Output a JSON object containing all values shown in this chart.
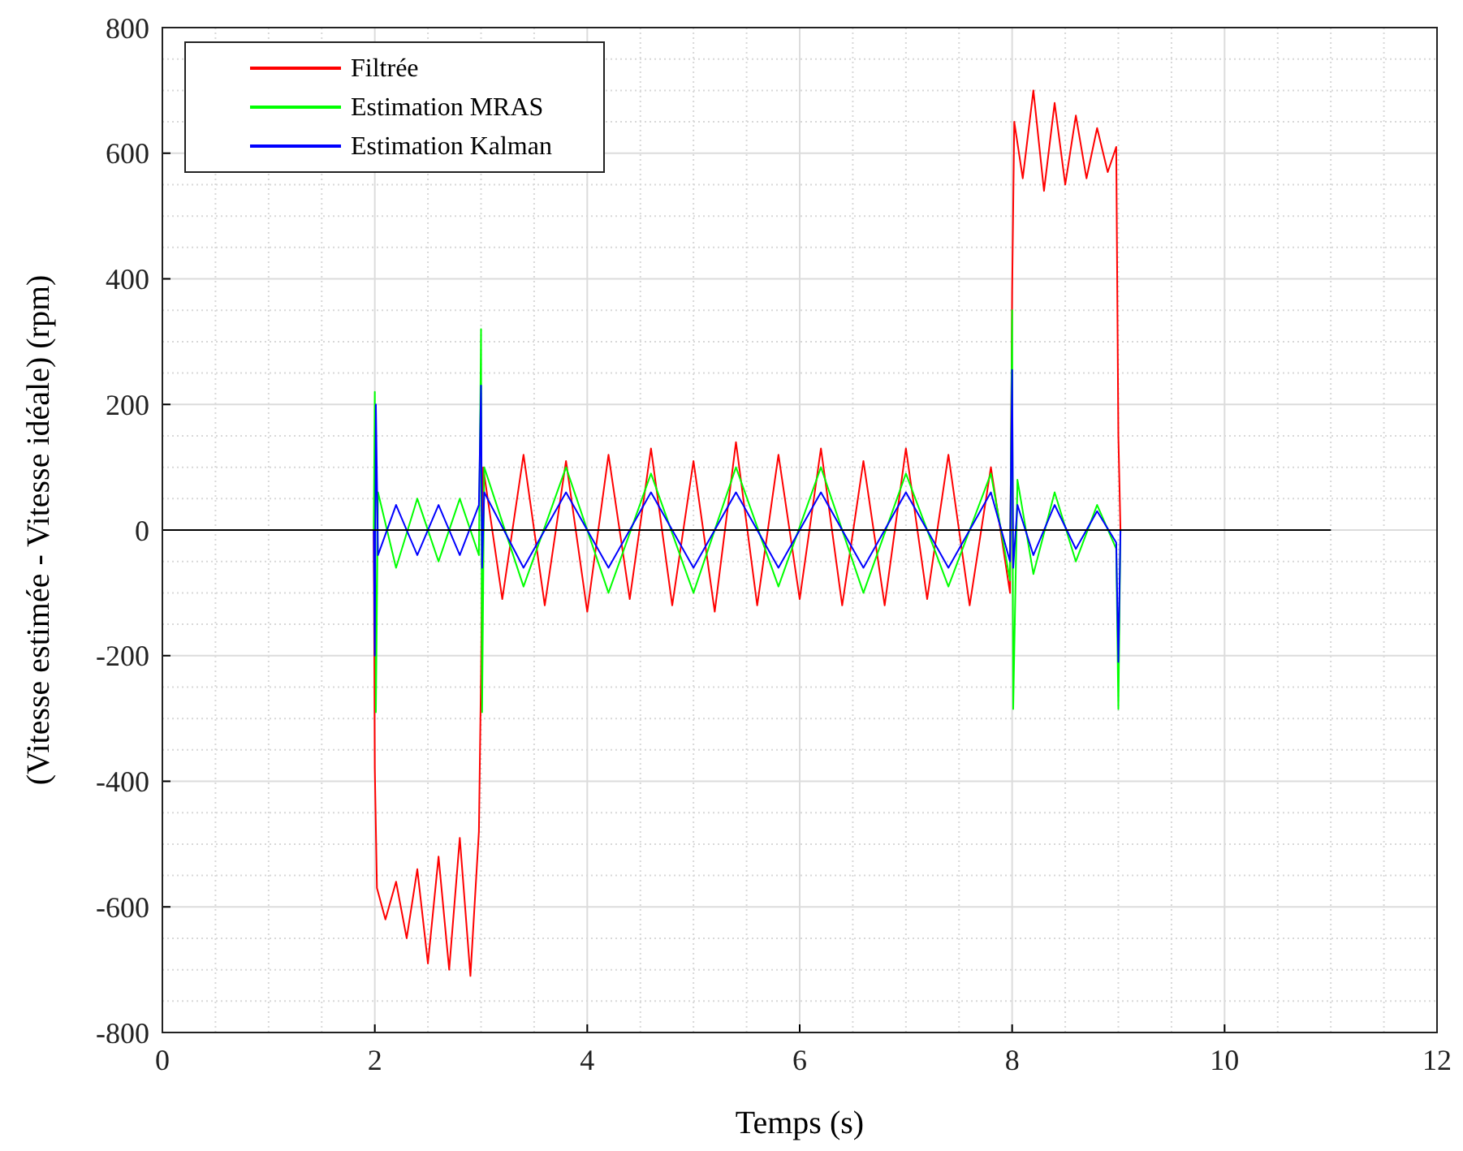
{
  "chart_data": {
    "type": "line",
    "xlabel": "Temps (s)",
    "ylabel": "(Vitesse estimée - Vitesse idéale) (rpm)",
    "xlim": [
      0,
      12
    ],
    "ylim": [
      -800,
      800
    ],
    "xticks": [
      0,
      2,
      4,
      6,
      8,
      10,
      12
    ],
    "yticks": [
      -800,
      -600,
      -400,
      -200,
      0,
      200,
      400,
      600,
      800
    ],
    "grid": true,
    "legend": "top left",
    "series": [
      {
        "name": "Filtrée",
        "color": "#ff0000",
        "x": [
          0,
          1.99,
          2,
          2.02,
          2.1,
          2.2,
          2.3,
          2.4,
          2.5,
          2.6,
          2.7,
          2.8,
          2.9,
          2.98,
          3,
          3.02,
          3.2,
          3.4,
          3.6,
          3.8,
          4,
          4.2,
          4.4,
          4.6,
          4.8,
          5,
          5.2,
          5.4,
          5.6,
          5.8,
          6,
          6.2,
          6.4,
          6.6,
          6.8,
          7,
          7.2,
          7.4,
          7.6,
          7.8,
          7.98,
          8,
          8.02,
          8.1,
          8.2,
          8.3,
          8.4,
          8.5,
          8.6,
          8.7,
          8.8,
          8.9,
          8.98,
          9,
          9.02,
          11
        ],
        "values": [
          0,
          0,
          -380,
          -570,
          -620,
          -560,
          -650,
          -540,
          -690,
          -520,
          -700,
          -490,
          -710,
          -480,
          -230,
          100,
          -110,
          120,
          -120,
          110,
          -130,
          120,
          -110,
          130,
          -120,
          110,
          -130,
          140,
          -120,
          120,
          -110,
          130,
          -120,
          110,
          -120,
          130,
          -110,
          120,
          -120,
          100,
          -100,
          380,
          650,
          560,
          700,
          540,
          680,
          550,
          660,
          560,
          640,
          570,
          610,
          150,
          0,
          0
        ]
      },
      {
        "name": "Estimation MRAS",
        "color": "#00ff00",
        "x": [
          0,
          1.99,
          2,
          2.01,
          2.03,
          2.2,
          2.4,
          2.6,
          2.8,
          2.98,
          3,
          3.01,
          3.03,
          3.4,
          3.8,
          4.2,
          4.6,
          5,
          5.4,
          5.8,
          6.2,
          6.6,
          7,
          7.4,
          7.8,
          7.98,
          8,
          8.01,
          8.05,
          8.2,
          8.4,
          8.6,
          8.8,
          8.98,
          9,
          9.02,
          11
        ],
        "values": [
          0,
          0,
          220,
          -290,
          60,
          -60,
          50,
          -50,
          50,
          -40,
          320,
          -290,
          100,
          -90,
          100,
          -100,
          90,
          -100,
          100,
          -90,
          100,
          -100,
          90,
          -90,
          90,
          -80,
          350,
          -285,
          80,
          -70,
          60,
          -50,
          40,
          -30,
          -285,
          0,
          0
        ]
      },
      {
        "name": "Estimation Kalman",
        "color": "#0000ff",
        "x": [
          0,
          1.99,
          2,
          2.01,
          2.03,
          2.2,
          2.4,
          2.6,
          2.8,
          2.98,
          3,
          3.01,
          3.03,
          3.4,
          3.8,
          4.2,
          4.6,
          5,
          5.4,
          5.8,
          6.2,
          6.6,
          7,
          7.4,
          7.8,
          7.98,
          8,
          8.01,
          8.05,
          8.2,
          8.4,
          8.6,
          8.8,
          8.98,
          9,
          9.02,
          11
        ],
        "values": [
          0,
          0,
          -200,
          200,
          -40,
          40,
          -40,
          40,
          -40,
          40,
          230,
          -60,
          60,
          -60,
          60,
          -60,
          60,
          -60,
          60,
          -60,
          60,
          -60,
          60,
          -60,
          60,
          -50,
          255,
          -60,
          40,
          -40,
          40,
          -30,
          30,
          -20,
          -210,
          0,
          0
        ]
      },
      {
        "color": "#000000",
        "x": [
          0,
          11
        ],
        "values": [
          0,
          0
        ]
      }
    ]
  }
}
